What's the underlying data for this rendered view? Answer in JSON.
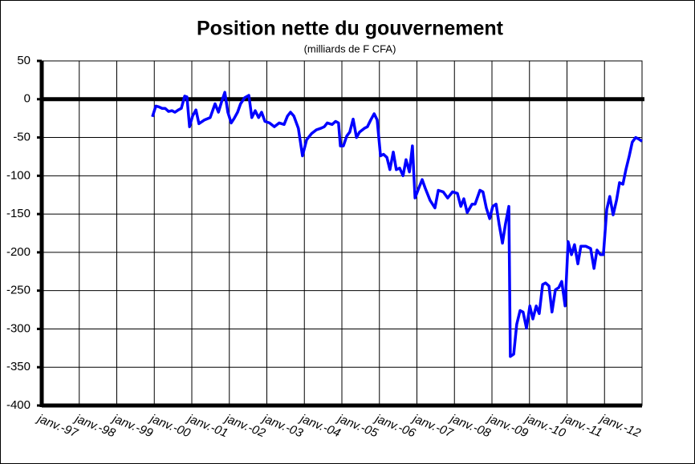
{
  "chart_data": {
    "type": "line",
    "title": "Position nette du gouvernement",
    "subtitle": "(milliards de F CFA)",
    "xlim": [
      1997,
      2013
    ],
    "ylim": [
      -400,
      50
    ],
    "xticks": [
      {
        "value": 1997,
        "label": "janv.-97"
      },
      {
        "value": 1998,
        "label": "janv.-98"
      },
      {
        "value": 1999,
        "label": "janv.-99"
      },
      {
        "value": 2000,
        "label": "janv.-00"
      },
      {
        "value": 2001,
        "label": "janv.-01"
      },
      {
        "value": 2002,
        "label": "janv.-02"
      },
      {
        "value": 2003,
        "label": "janv.-03"
      },
      {
        "value": 2004,
        "label": "janv.-04"
      },
      {
        "value": 2005,
        "label": "janv.-05"
      },
      {
        "value": 2006,
        "label": "janv.-06"
      },
      {
        "value": 2007,
        "label": "janv.-07"
      },
      {
        "value": 2008,
        "label": "janv.-08"
      },
      {
        "value": 2009,
        "label": "janv.-09"
      },
      {
        "value": 2010,
        "label": "janv.-10"
      },
      {
        "value": 2011,
        "label": "janv.-11"
      },
      {
        "value": 2012,
        "label": "janv.-12"
      }
    ],
    "yticks": [
      50,
      0,
      -50,
      -100,
      -150,
      -200,
      -250,
      -300,
      -350,
      -400
    ],
    "grid": true,
    "series": [
      {
        "color": "#0000ff",
        "x": [
          1999.95,
          2000.04,
          2000.12,
          2000.21,
          2000.29,
          2000.38,
          2000.47,
          2000.55,
          2000.64,
          2000.72,
          2000.81,
          2000.87,
          2000.94,
          2001.02,
          2001.11,
          2001.19,
          2001.34,
          2001.49,
          2001.62,
          2001.71,
          2001.79,
          2001.88,
          2001.96,
          2002.05,
          2002.13,
          2002.22,
          2002.3,
          2002.41,
          2002.52,
          2002.6,
          2002.69,
          2002.78,
          2002.86,
          2002.95,
          2003.07,
          2003.2,
          2003.33,
          2003.46,
          2003.55,
          2003.63,
          2003.72,
          2003.84,
          2003.95,
          2004.06,
          2004.19,
          2004.32,
          2004.44,
          2004.53,
          2004.61,
          2004.74,
          2004.83,
          2004.91,
          2004.96,
          2005.04,
          2005.13,
          2005.21,
          2005.3,
          2005.39,
          2005.47,
          2005.6,
          2005.68,
          2005.77,
          2005.86,
          2005.94,
          2006.03,
          2006.11,
          2006.2,
          2006.28,
          2006.37,
          2006.45,
          2006.54,
          2006.63,
          2006.71,
          2006.8,
          2006.88,
          2006.95,
          2007.05,
          2007.14,
          2007.22,
          2007.35,
          2007.48,
          2007.57,
          2007.7,
          2007.82,
          2007.95,
          2008.08,
          2008.17,
          2008.25,
          2008.34,
          2008.47,
          2008.55,
          2008.68,
          2008.76,
          2008.85,
          2008.94,
          2009.02,
          2009.11,
          2009.19,
          2009.28,
          2009.36,
          2009.45,
          2009.49,
          2009.58,
          2009.66,
          2009.75,
          2009.83,
          2009.92,
          2010.01,
          2010.09,
          2010.18,
          2010.26,
          2010.35,
          2010.43,
          2010.52,
          2010.6,
          2010.69,
          2010.78,
          2010.86,
          2010.95,
          2011.03,
          2011.12,
          2011.2,
          2011.29,
          2011.37,
          2011.5,
          2011.63,
          2011.72,
          2011.8,
          2011.89,
          2011.97,
          2012.06,
          2012.14,
          2012.23,
          2012.32,
          2012.4,
          2012.49,
          2012.57,
          2012.66,
          2012.74,
          2012.83,
          2012.91,
          2013.0
        ],
        "values": [
          -23,
          -9,
          -10,
          -12,
          -12,
          -16,
          -15,
          -17,
          -14,
          -12,
          4,
          3,
          -36,
          -22,
          -14,
          -32,
          -27,
          -24,
          -6,
          -17,
          -4,
          9,
          -17,
          -31,
          -25,
          -17,
          -6,
          2,
          5,
          -24,
          -15,
          -24,
          -17,
          -29,
          -31,
          -36,
          -31,
          -33,
          -22,
          -17,
          -22,
          -38,
          -74,
          -53,
          -45,
          -40,
          -38,
          -36,
          -31,
          -33,
          -29,
          -31,
          -61,
          -61,
          -48,
          -43,
          -26,
          -50,
          -43,
          -38,
          -36,
          -27,
          -19,
          -27,
          -74,
          -72,
          -76,
          -92,
          -69,
          -92,
          -90,
          -100,
          -79,
          -95,
          -61,
          -129,
          -116,
          -105,
          -116,
          -132,
          -142,
          -119,
          -121,
          -129,
          -121,
          -123,
          -140,
          -130,
          -148,
          -137,
          -137,
          -119,
          -121,
          -142,
          -156,
          -140,
          -137,
          -163,
          -188,
          -163,
          -140,
          -336,
          -333,
          -294,
          -276,
          -278,
          -299,
          -270,
          -287,
          -270,
          -280,
          -242,
          -240,
          -244,
          -278,
          -249,
          -246,
          -238,
          -270,
          -186,
          -203,
          -190,
          -215,
          -192,
          -192,
          -195,
          -221,
          -197,
          -203,
          -203,
          -144,
          -127,
          -151,
          -132,
          -109,
          -111,
          -92,
          -74,
          -56,
          -50,
          -52,
          -55
        ]
      }
    ]
  }
}
